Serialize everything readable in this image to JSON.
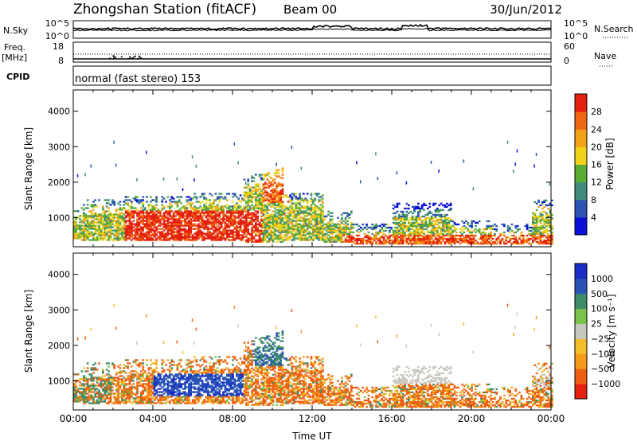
{
  "header": {
    "station": "Zhongshan Station (fitACF)",
    "beam": "Beam 00",
    "date": "30/Jun/2012"
  },
  "strip_nsky": {
    "left_label": "N.Sky",
    "ticks_left": [
      "10^5",
      "10^0"
    ],
    "right_label": "N.Search",
    "ticks_right": [
      "10^5",
      "10^0"
    ]
  },
  "strip_freq": {
    "left_label_top": "Freq.",
    "left_label_unit": "[MHz]",
    "ticks_left": [
      "18",
      "8"
    ],
    "right_label": "Nave",
    "ticks_right": [
      "60",
      "0"
    ]
  },
  "strip_cpid": {
    "label": "CPID",
    "text": "normal (fast stereo) 153"
  },
  "colors": {
    "power": [
      "#0a10d8",
      "#2b54b4",
      "#3f8c7a",
      "#59ad32",
      "#f0d21a",
      "#f3a118",
      "#f06812",
      "#e42010"
    ],
    "velocity": [
      "#e5220e",
      "#ee5f14",
      "#f59a1a",
      "#f3bd2b",
      "#c8c8c0",
      "#7bc24a",
      "#3e8d68",
      "#2954b6",
      "#1a2ec6"
    ]
  },
  "chart_data": [
    {
      "type": "heatmap",
      "quantity": "power",
      "ylabel": "Slant Range [km]",
      "yticks": [
        1000,
        2000,
        3000,
        4000
      ],
      "ylim": [
        180,
        4600
      ],
      "x_start": "00:00",
      "x_end": "00:00",
      "colorbar_label": "Power [dB]",
      "colorbar_ticks": [
        "4",
        "8",
        "12",
        "16",
        "20",
        "24",
        "28"
      ]
    },
    {
      "type": "heatmap",
      "quantity": "velocity",
      "ylabel": "Slant Range [km]",
      "yticks": [
        1000,
        2000,
        3000,
        4000
      ],
      "ylim": [
        180,
        4600
      ],
      "xlabel": "Time UT",
      "xticks": [
        "00:00",
        "04:00",
        "08:00",
        "12:00",
        "16:00",
        "20:00",
        "00:00"
      ],
      "colorbar_label": "Velocity [m s⁻¹]",
      "colorbar_ticks": [
        "1000",
        "500",
        "100",
        "25",
        "−25",
        "−100",
        "−500",
        "−1000"
      ]
    }
  ]
}
